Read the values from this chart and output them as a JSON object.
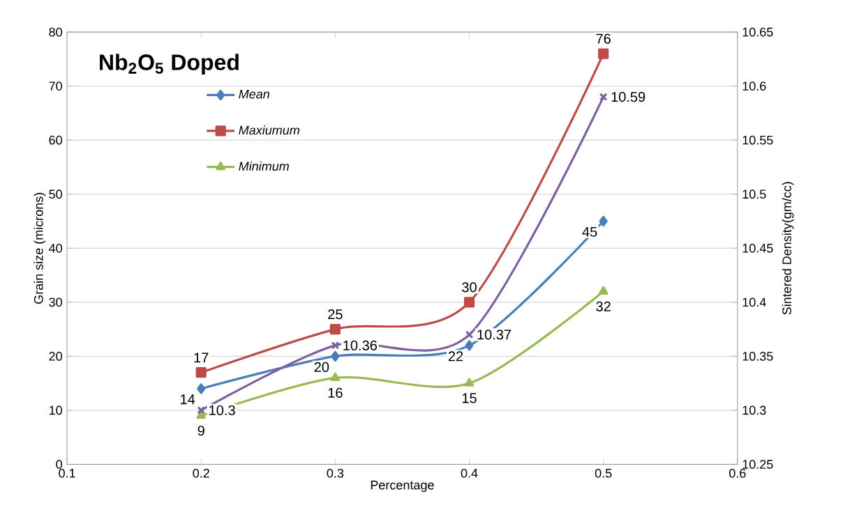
{
  "chart_data": {
    "type": "line",
    "title": "Nb$_{2}$O$_{5}$ Doped",
    "xlabel": "Percentage",
    "ylabel": "Grain size (microns)",
    "y2label": "Sintered Density(gm/cc)",
    "x": [
      0.2,
      0.3,
      0.4,
      0.5
    ],
    "series": [
      {
        "name": "Mean",
        "color": "#4a7ebb",
        "marker": "diamond",
        "values": [
          14,
          20,
          22,
          45
        ]
      },
      {
        "name": "Maxiumum",
        "color": "#be4b48",
        "marker": "square",
        "values": [
          17,
          25,
          30,
          76
        ]
      },
      {
        "name": "Minimum",
        "color": "#98b954",
        "marker": "triangle",
        "values": [
          9,
          16,
          15,
          32
        ]
      },
      {
        "color": "#7d60a0",
        "marker": "cross",
        "axis": "y2",
        "values": [
          10.3,
          10.36,
          10.37,
          10.59
        ]
      }
    ],
    "xlim": [
      0.1,
      0.6
    ],
    "xticks": [
      0.1,
      0.2,
      0.3,
      0.4,
      0.5,
      0.6
    ],
    "ylim": [
      0,
      80
    ],
    "yticks": [
      0,
      10,
      20,
      30,
      40,
      50,
      60,
      70,
      80
    ],
    "y2lim": [
      10.25,
      10.65
    ],
    "y2ticks": [
      10.25,
      10.3,
      10.35,
      10.4,
      10.45,
      10.5,
      10.55,
      10.6,
      10.65
    ],
    "grid": "y",
    "legend": "top left",
    "data_labels": true
  }
}
